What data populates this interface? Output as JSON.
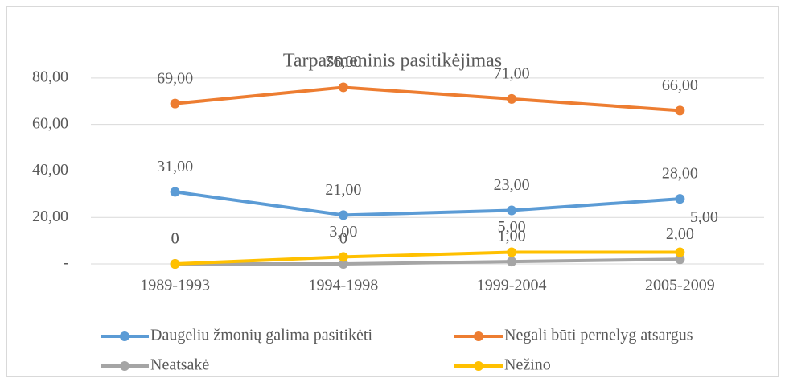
{
  "chart_data": {
    "type": "line",
    "title": "Tarpasmeninis pasitikėjimas",
    "categories": [
      "1989-1993",
      "1994-1998",
      "1999-2004",
      "2005-2009"
    ],
    "series": [
      {
        "name": "Daugeliu žmonių galima pasitikėti",
        "color": "#5b9bd5",
        "values": [
          31,
          21,
          23,
          28
        ],
        "value_labels": [
          "31,00",
          "21,00",
          "23,00",
          "28,00"
        ]
      },
      {
        "name": "Negali būti pernelyg atsargus",
        "color": "#ed7d31",
        "values": [
          69,
          76,
          71,
          66
        ],
        "value_labels": [
          "69,00",
          "76,00",
          "71,00",
          "66,00"
        ]
      },
      {
        "name": "Neatsakė",
        "color": "#a5a5a5",
        "values": [
          0,
          0,
          1,
          2
        ],
        "value_labels": [
          "0",
          "0",
          "1,00",
          "2,00"
        ]
      },
      {
        "name": "Nežino",
        "color": "#ffc000",
        "values": [
          0,
          3,
          5,
          5
        ],
        "value_labels": [
          "0",
          "3,00",
          "5,00",
          "5,00"
        ]
      }
    ],
    "ylim": [
      0,
      90
    ],
    "yticks": [
      {
        "value": 0,
        "label": "-"
      },
      {
        "value": 20,
        "label": "20,00"
      },
      {
        "value": 40,
        "label": "40,00"
      },
      {
        "value": 60,
        "label": "60,00"
      },
      {
        "value": 80,
        "label": "80,00"
      }
    ],
    "grid": true
  }
}
